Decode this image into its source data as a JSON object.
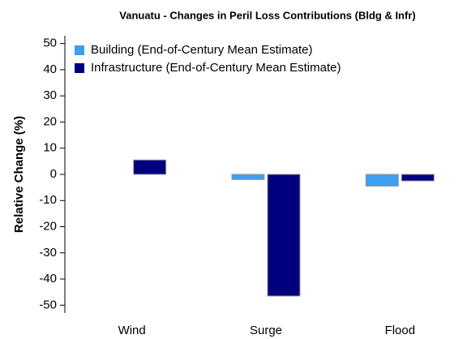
{
  "chart_data": {
    "type": "bar",
    "title": "Vanuatu - Changes in Peril Loss Contributions (Bldg & Infr)",
    "y_label": "Relative Change (%)",
    "categories": [
      "Wind",
      "Surge",
      "Flood"
    ],
    "series": [
      {
        "name": "Building (End-of-Century Mean Estimate)",
        "color": "#3d9ff0",
        "values": [
          0,
          -2,
          -4.5
        ]
      },
      {
        "name": "Infrastructure (End-of-Century Mean Estimate)",
        "color": "#00007f",
        "values": [
          5.5,
          -46.5,
          -2.5
        ]
      }
    ],
    "ylim": [
      -53,
      53
    ],
    "yticks": [
      -50,
      -40,
      -30,
      -20,
      -10,
      0,
      10,
      20,
      30,
      40,
      50
    ],
    "legend": "upper left"
  }
}
